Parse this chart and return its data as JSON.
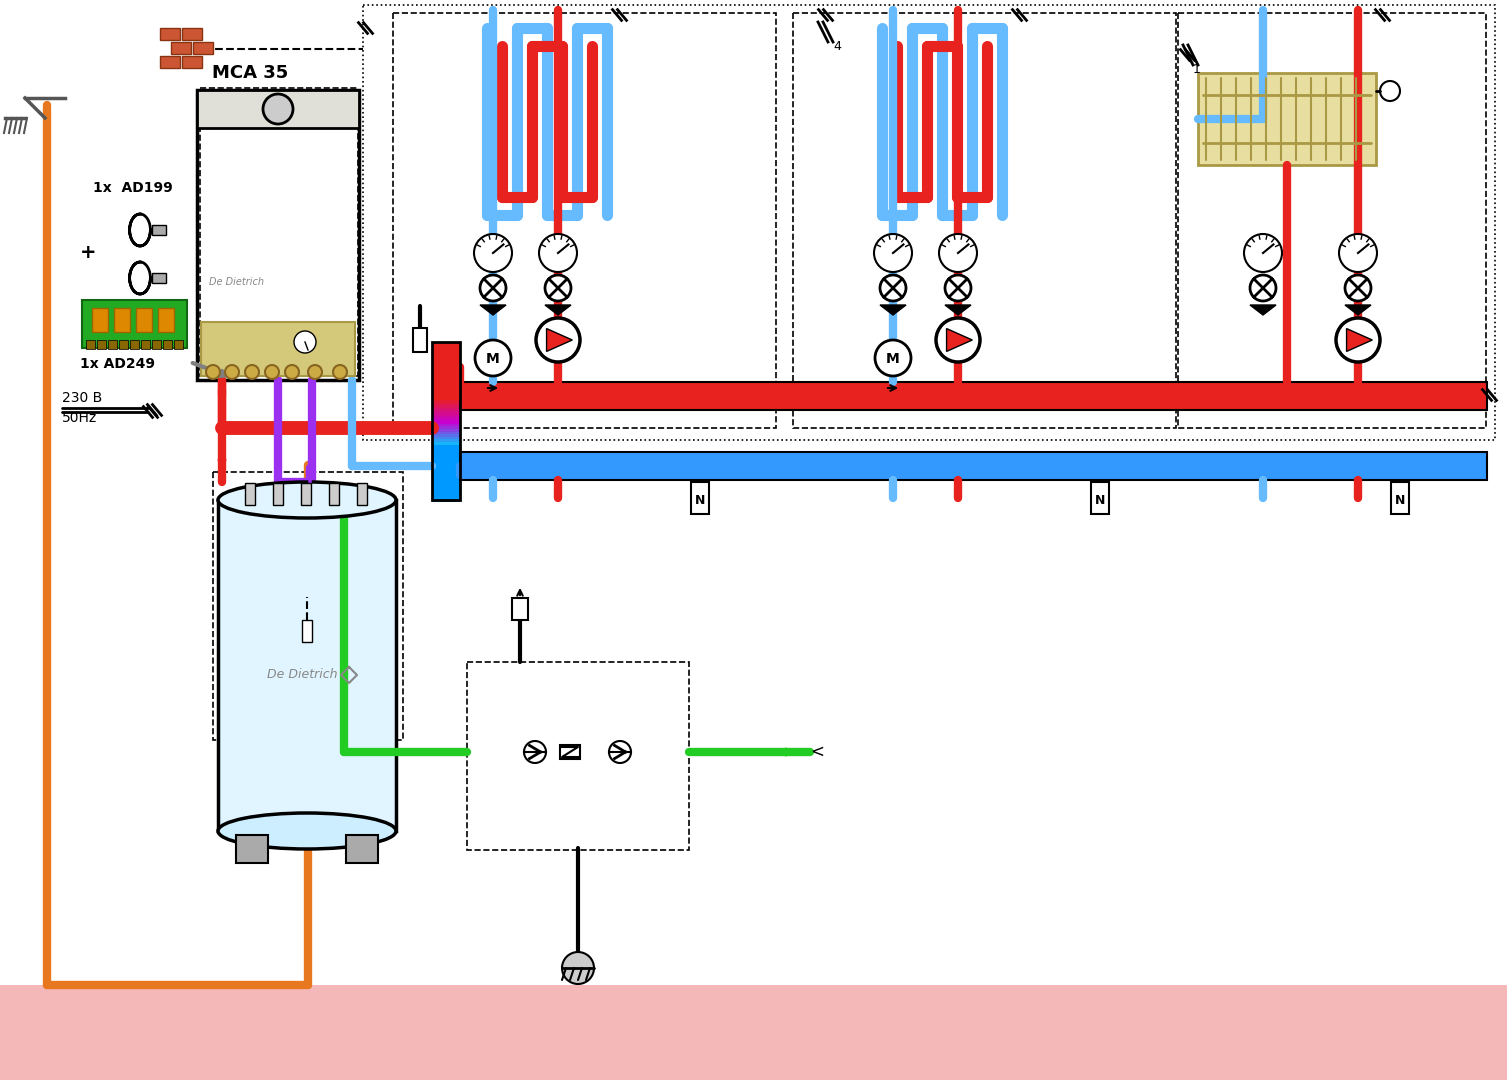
{
  "bg_color": "#ffffff",
  "fig_width": 15.07,
  "fig_height": 10.8,
  "colors": {
    "red": "#e8221e",
    "blue": "#3399ff",
    "blue_light": "#66bbff",
    "orange": "#e87820",
    "green": "#22cc22",
    "purple": "#9b30f0",
    "gray": "#aaaaaa",
    "dark": "#111111",
    "gold": "#ccaa55",
    "pink_floor": "#f5b8b8",
    "cyan": "#00ccdd",
    "magenta": "#cc44cc"
  },
  "labels": {
    "mca35": "MCA 35",
    "ad199": "1x  AD199",
    "ad249": "1x AD249",
    "voltage": "230 B",
    "freq": "50Hz",
    "de_dietrich": "De Dietrich"
  }
}
